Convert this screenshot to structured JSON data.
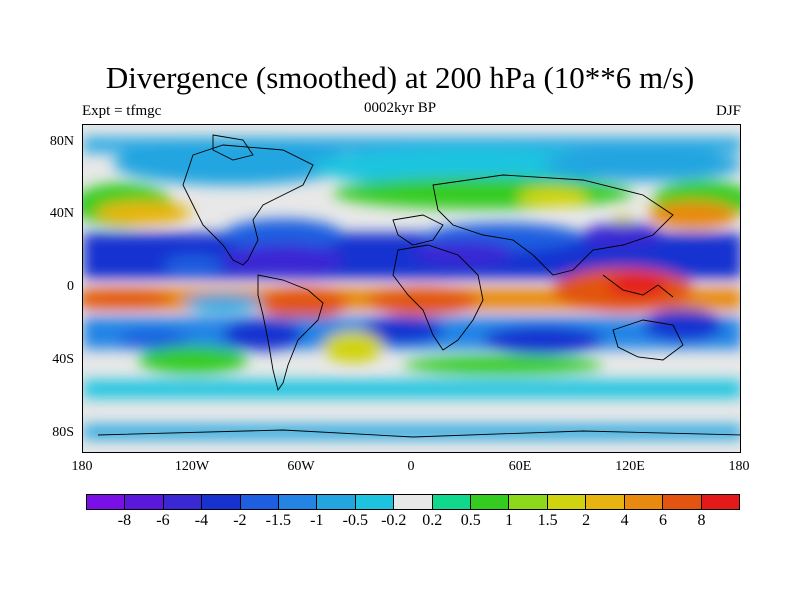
{
  "header": {
    "title": "Divergence (smoothed) at 200 hPa (10**6 m/s)",
    "left_label": "Expt = tfmgc",
    "center_label": "0002kyr BP",
    "right_label": "DJF"
  },
  "axes": {
    "y_ticks": [
      "80N",
      "40N",
      "0",
      "40S",
      "80S"
    ],
    "x_ticks": [
      "180",
      "120W",
      "60W",
      "0",
      "60E",
      "120E",
      "180"
    ]
  },
  "colorbar": {
    "colors": [
      "#7a10e6",
      "#5a18dc",
      "#3a28d4",
      "#1832d0",
      "#1e5ee0",
      "#2484e6",
      "#23a5e0",
      "#1cc4e0",
      "#e8e8e8",
      "#10d88c",
      "#34cc20",
      "#8cd81a",
      "#d0d410",
      "#e8b410",
      "#e88a10",
      "#e25410",
      "#e41a1a"
    ],
    "labels": [
      "-8",
      "-6",
      "-4",
      "-2",
      "-1.5",
      "-1",
      "-0.5",
      "-0.2",
      "0.2",
      "0.5",
      "1",
      "1.5",
      "2",
      "4",
      "6",
      "8"
    ]
  },
  "map": {
    "background_color": "#e8e8e8",
    "coastline_color": "#000000"
  }
}
